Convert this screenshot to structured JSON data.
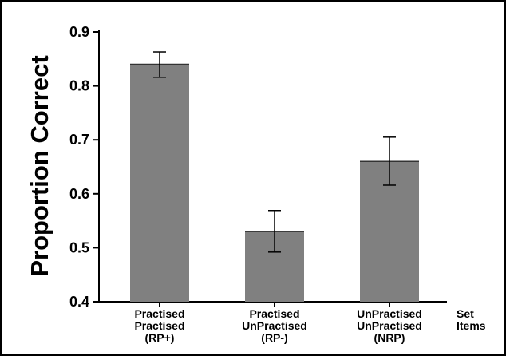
{
  "chart_data": {
    "type": "bar",
    "title": "",
    "xlabel": "",
    "ylabel": "Proportion Correct",
    "ylim": [
      0.4,
      0.9
    ],
    "yticks": [
      "0.4",
      "0.5",
      "0.6",
      "0.7",
      "0.8",
      "0.9"
    ],
    "grid": false,
    "categories": [
      [
        "Practised",
        "Practised",
        "(RP+)"
      ],
      [
        "Practised",
        "UnPractised",
        "(RP-)"
      ],
      [
        "UnPractised",
        "UnPractised",
        "(NRP)"
      ]
    ],
    "category_header": [
      "Set",
      "Items"
    ],
    "values": [
      0.84,
      0.53,
      0.66
    ],
    "error_low": [
      0.816,
      0.492,
      0.616
    ],
    "error_high": [
      0.863,
      0.569,
      0.705
    ],
    "bar_color": "#808080"
  }
}
